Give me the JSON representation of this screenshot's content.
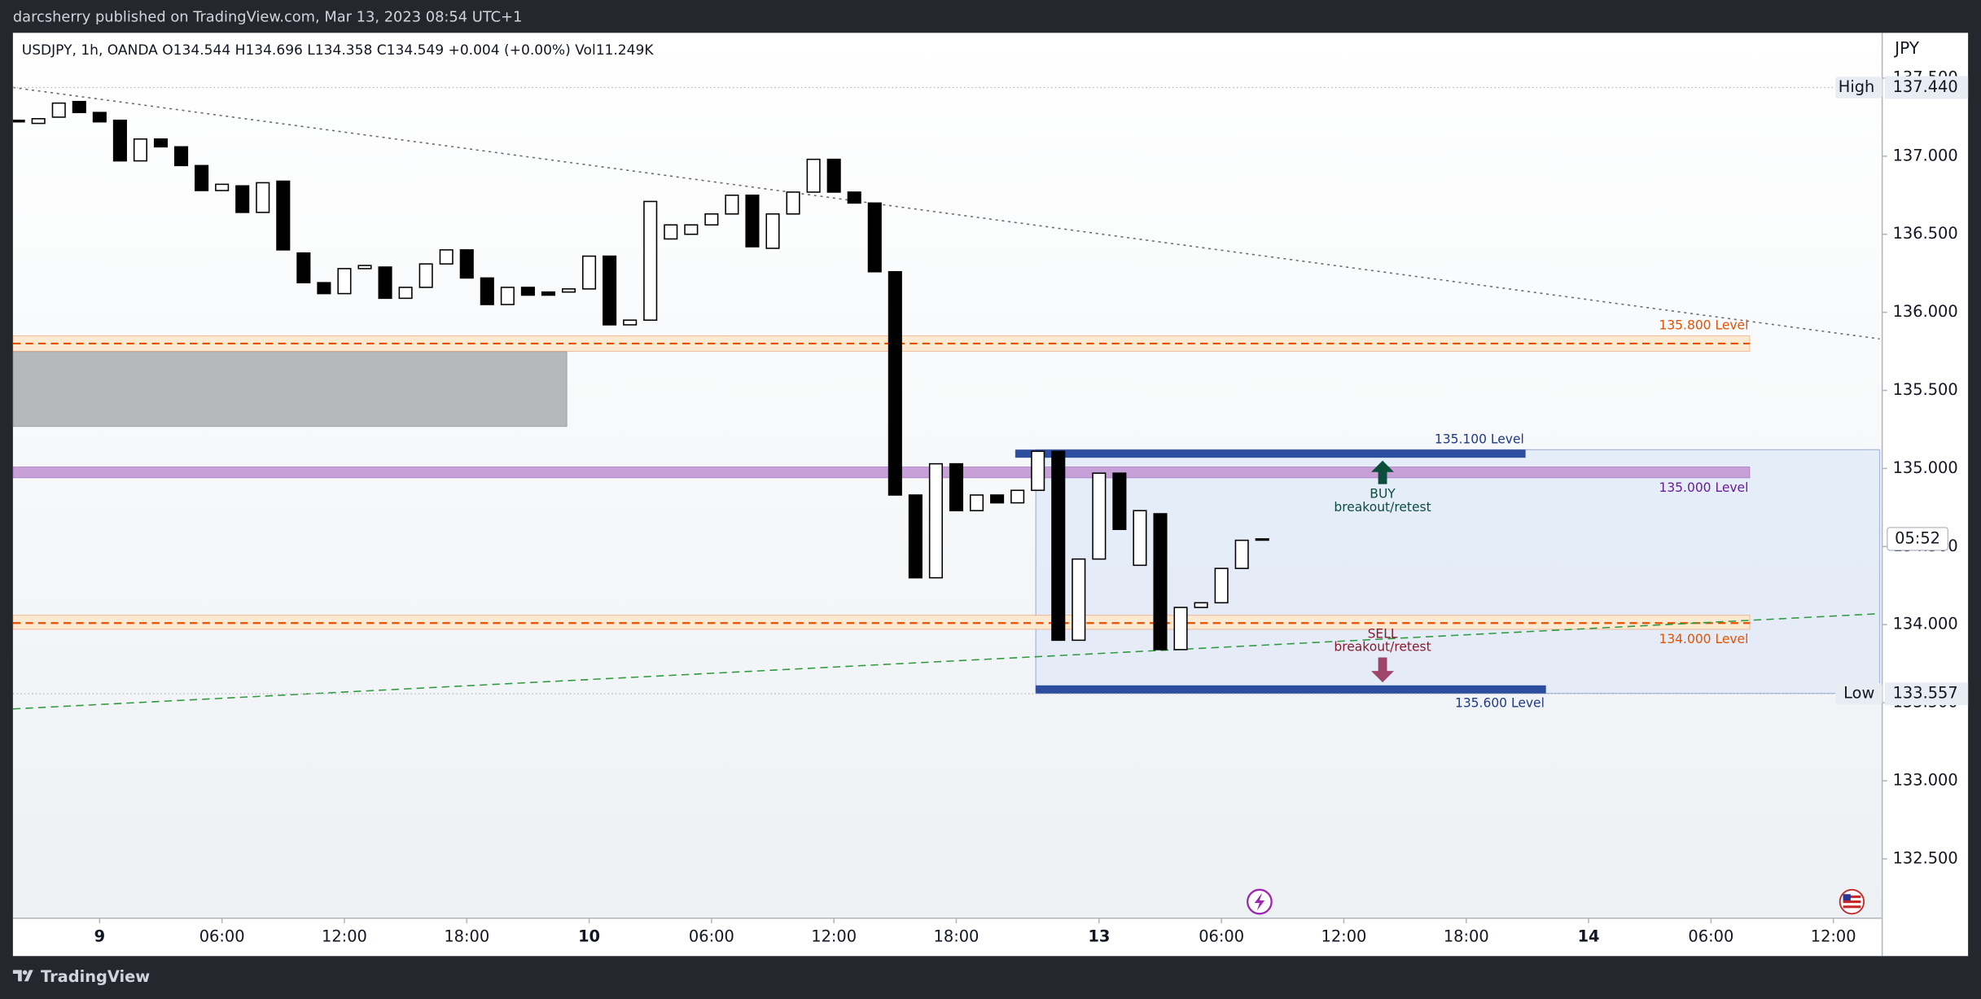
{
  "header": "darcsherry published on TradingView.com, Mar 13, 2023 08:54 UTC+1",
  "legend": "USDJPY, 1h, OANDA  O134.544 H134.696 L134.358 C134.549 +0.004 (+0.00%) Vol11.249K",
  "currency": "JPY",
  "footer": "TradingView",
  "chart_data": {
    "type": "candlestick",
    "x": [
      0,
      1,
      2,
      3,
      4,
      5,
      6,
      7,
      8,
      9,
      10,
      11,
      12,
      13,
      14,
      15,
      16,
      17,
      18,
      19,
      20,
      21,
      22,
      23,
      24,
      25,
      26,
      27,
      28,
      29,
      30,
      31,
      32,
      33,
      34,
      35,
      36,
      37,
      38,
      39,
      40,
      41,
      42,
      43,
      44,
      45,
      46,
      47,
      48,
      49,
      50,
      51,
      52,
      53,
      54,
      55,
      56,
      57,
      58,
      59,
      60,
      61
    ],
    "open": [
      137.23,
      137.21,
      137.25,
      137.35,
      137.28,
      137.23,
      136.97,
      137.11,
      137.06,
      136.94,
      136.78,
      136.81,
      136.64,
      136.84,
      136.38,
      136.19,
      136.12,
      136.28,
      136.29,
      136.09,
      136.16,
      136.31,
      136.4,
      136.22,
      136.05,
      136.16,
      136.13,
      136.13,
      136.15,
      136.36,
      135.92,
      135.95,
      136.47,
      136.5,
      136.56,
      136.63,
      136.75,
      136.41,
      136.63,
      136.77,
      136.98,
      136.77,
      136.7,
      136.26,
      134.83,
      134.3,
      135.03,
      134.73,
      134.83,
      134.78,
      134.86,
      135.11,
      133.9,
      134.42,
      134.97,
      134.38,
      134.71,
      133.84,
      134.11,
      134.14,
      134.36,
      134.544
    ],
    "high": {
      "label": "High",
      "price": {
        "value": 137.44,
        "label": "137.440"
      }
    },
    "low": {
      "label": "Low",
      "price": 133.557
    },
    "close": [
      137.22,
      137.24,
      137.34,
      137.28,
      137.22,
      136.97,
      137.11,
      137.06,
      136.94,
      136.78,
      136.82,
      136.64,
      136.83,
      136.4,
      136.19,
      136.12,
      136.28,
      136.3,
      136.09,
      136.16,
      136.31,
      136.4,
      136.22,
      136.05,
      136.16,
      136.11,
      136.11,
      136.15,
      136.36,
      135.92,
      135.95,
      136.71,
      136.56,
      136.56,
      136.63,
      136.75,
      136.42,
      136.63,
      136.77,
      136.98,
      136.77,
      136.7,
      136.26,
      134.83,
      134.3,
      135.03,
      134.73,
      134.83,
      134.78,
      134.86,
      135.11,
      133.9,
      134.42,
      134.97,
      134.61,
      134.73,
      133.84,
      134.11,
      134.14,
      134.36,
      134.54,
      134.549
    ],
    "up_color": "#ffffff",
    "down_color": "#000000",
    "wick_color": "#000000",
    "xlim": [
      -0.25,
      91.27
    ],
    "ylim": [
      132.12,
      137.79
    ],
    "xticks": [
      {
        "value": 4,
        "label": "9"
      },
      {
        "value": 10,
        "label": "06:00"
      },
      {
        "value": 16,
        "label": "12:00"
      },
      {
        "value": 22,
        "label": "18:00"
      },
      {
        "value": 28,
        "label": "10"
      },
      {
        "value": 34,
        "label": "06:00"
      },
      {
        "value": 40,
        "label": "12:00"
      },
      {
        "value": 46,
        "label": "18:00"
      },
      {
        "value": 53,
        "label": "13"
      },
      {
        "value": 59,
        "label": "06:00"
      },
      {
        "value": 65,
        "label": "12:00"
      },
      {
        "value": 71,
        "label": "18:00"
      },
      {
        "value": 77,
        "label": "14"
      },
      {
        "value": 83,
        "label": "06:00"
      },
      {
        "value": 89,
        "label": "12:00"
      }
    ],
    "yticks": [
      {
        "value": 132.5,
        "label": "132.500"
      },
      {
        "value": 133,
        "label": "133.000"
      },
      {
        "value": 133.5,
        "label": "133.500"
      },
      {
        "value": 134,
        "label": "134.000"
      },
      {
        "value": 134.5,
        "label": "134.500"
      },
      {
        "value": 135,
        "label": "135.000"
      },
      {
        "value": 135.5,
        "label": "135.500"
      },
      {
        "value": 136,
        "label": "136.000"
      },
      {
        "value": 136.5,
        "label": "136.500"
      },
      {
        "value": 137,
        "label": "137.000"
      },
      {
        "value": 137.5,
        "label": "137.500"
      }
    ],
    "grid": false,
    "boxes": [
      {
        "xlim": [
          49.9,
          91.27
        ],
        "ylim": [
          133.56,
          135.12
        ],
        "color": "#e4ecf8",
        "stroke": "#9fb2d8"
      },
      {
        "xlim": [
          -0.25,
          26.9
        ],
        "ylim": [
          135.27,
          135.75
        ],
        "color": "#afb1b5",
        "stroke": "#9a9ca0"
      }
    ],
    "trendlines": [
      {
        "x": [
          -0.25,
          91.27
        ],
        "y": [
          137.44,
          135.83
        ],
        "color": "#6b6b6b",
        "dash": "dotted"
      },
      {
        "x": [
          -0.25,
          91.27
        ],
        "y": [
          133.46,
          134.07
        ],
        "color": "#2e9a3e",
        "dash": "dashed"
      }
    ],
    "zones": [
      {
        "name": "135.800 Level",
        "xlim": [
          -0.25,
          84.9
        ],
        "ylim": [
          135.75,
          135.85
        ],
        "line": 135.8,
        "color": "#e65100",
        "fill": "#fbe9d2",
        "label_side": "above"
      },
      {
        "name": "135.000 Level",
        "xlim": [
          -0.25,
          84.9
        ],
        "ylim": [
          134.94,
          135.01
        ],
        "color": "#6a1b9a",
        "fill": "#c7a0d8",
        "label_side": "below"
      },
      {
        "name": "134.000 Level",
        "xlim": [
          -0.25,
          84.9
        ],
        "ylim": [
          133.97,
          134.06
        ],
        "line": 134.01,
        "color": "#e65100",
        "fill": "#fbe9d2",
        "label_side": "below"
      },
      {
        "name": "135.100 Level",
        "xlim": [
          48.9,
          73.9
        ],
        "ylim": [
          135.07,
          135.12
        ],
        "color": "#1e3a8a",
        "fill": "#2d4d9e",
        "label_side": "above"
      },
      {
        "name": "135.600 Level",
        "xlim": [
          49.9,
          74.9
        ],
        "ylim": [
          133.56,
          133.61
        ],
        "color": "#1e3a8a",
        "fill": "#2d4d9e",
        "label_side": "below"
      }
    ],
    "signals": [
      {
        "text": [
          "BUY",
          "breakout/retest"
        ],
        "x": 66.9,
        "arrow": [
          134.9,
          135.05
        ],
        "color": "#0d4d3c",
        "side": "below"
      },
      {
        "text": [
          "SELL",
          "breakout/retest"
        ],
        "x": 66.9,
        "arrow": [
          133.79,
          133.63
        ],
        "color": "#8b1a2b",
        "arrow_color": "#a0456a",
        "side": "above"
      }
    ],
    "countdown": {
      "label": "05:52",
      "price": 134.549
    }
  }
}
